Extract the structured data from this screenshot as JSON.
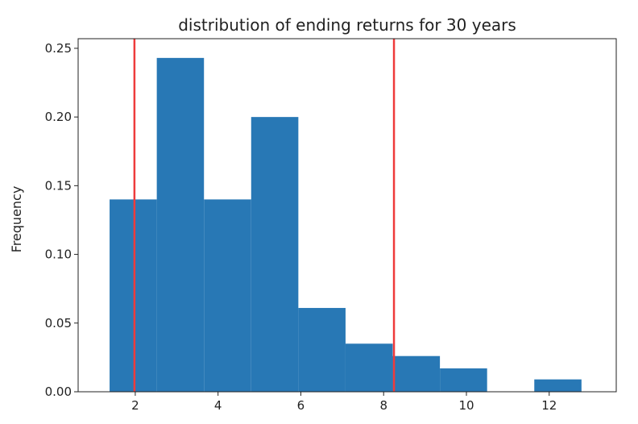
{
  "chart_data": {
    "type": "bar",
    "title": "distribution of ending returns for 30 years",
    "xlabel": "",
    "ylabel": "Frequency",
    "xlim": [
      0.62,
      13.62
    ],
    "ylim": [
      0,
      0.257
    ],
    "xticks": [
      2,
      4,
      6,
      8,
      10,
      12
    ],
    "yticks": [
      0.0,
      0.05,
      0.1,
      0.15,
      0.2,
      0.25
    ],
    "ytick_labels": [
      "0.00",
      "0.05",
      "0.10",
      "0.15",
      "0.20",
      "0.25"
    ],
    "bins": [
      {
        "x0": 1.38,
        "x1": 2.52,
        "value": 0.14
      },
      {
        "x0": 2.52,
        "x1": 3.66,
        "value": 0.243
      },
      {
        "x0": 3.66,
        "x1": 4.8,
        "value": 0.14
      },
      {
        "x0": 4.8,
        "x1": 5.94,
        "value": 0.2
      },
      {
        "x0": 5.94,
        "x1": 7.08,
        "value": 0.061
      },
      {
        "x0": 7.08,
        "x1": 8.22,
        "value": 0.035
      },
      {
        "x0": 8.22,
        "x1": 9.36,
        "value": 0.026
      },
      {
        "x0": 9.36,
        "x1": 10.5,
        "value": 0.017
      },
      {
        "x0": 10.5,
        "x1": 11.64,
        "value": 0.0
      },
      {
        "x0": 11.64,
        "x1": 12.78,
        "value": 0.009
      }
    ],
    "vlines": [
      1.98,
      8.25
    ],
    "bar_color": "#2878b5",
    "vline_color": "#ee3b3b",
    "grid": false
  }
}
